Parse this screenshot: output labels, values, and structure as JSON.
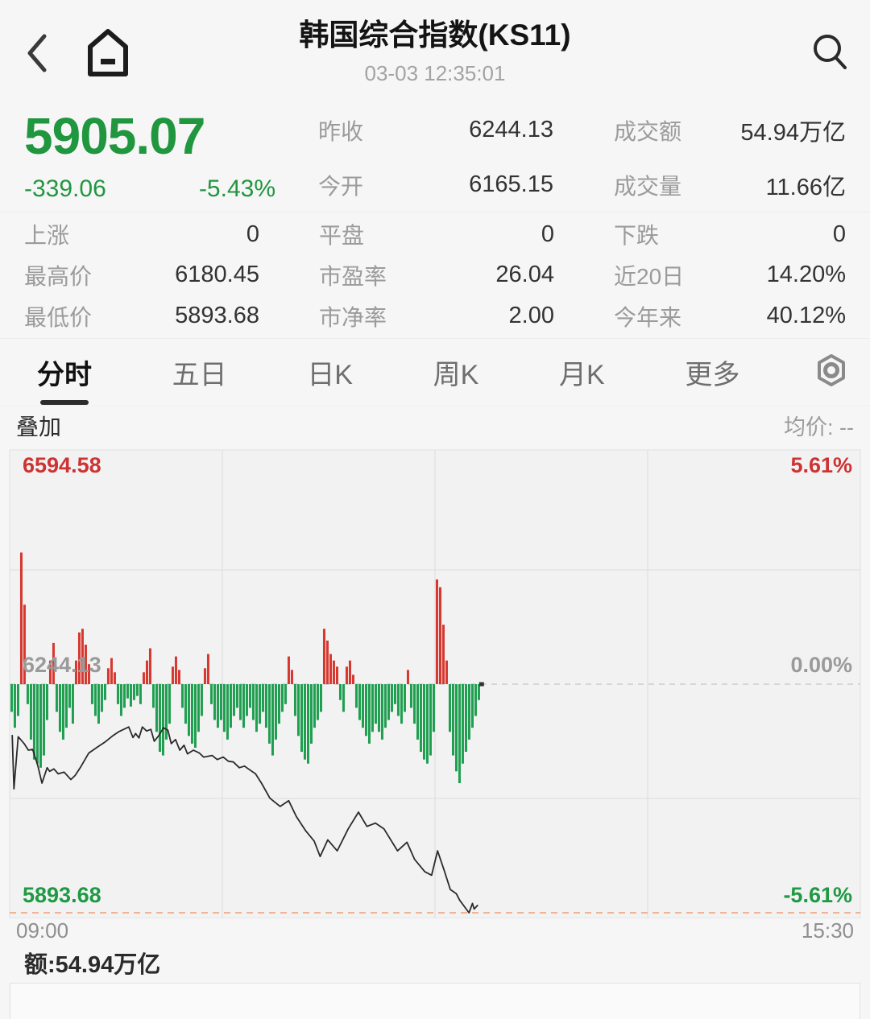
{
  "header": {
    "title": "韩国综合指数(KS11)",
    "time": "03-03 12:35:01"
  },
  "quote": {
    "price": "5905.07",
    "change": "-339.06",
    "change_pct": "-5.43%",
    "stats_top": [
      {
        "label": "昨收",
        "value": "6244.13"
      },
      {
        "label": "成交额",
        "value": "54.94万亿"
      },
      {
        "label": "今开",
        "value": "6165.15"
      },
      {
        "label": "成交量",
        "value": "11.66亿"
      }
    ],
    "stats": [
      {
        "label": "上涨",
        "value": "0"
      },
      {
        "label": "平盘",
        "value": "0"
      },
      {
        "label": "下跌",
        "value": "0"
      },
      {
        "label": "最高价",
        "value": "6180.45"
      },
      {
        "label": "市盈率",
        "value": "26.04"
      },
      {
        "label": "近20日",
        "value": "14.20%"
      },
      {
        "label": "最低价",
        "value": "5893.68"
      },
      {
        "label": "市净率",
        "value": "2.00"
      },
      {
        "label": "今年来",
        "value": "40.12%"
      }
    ]
  },
  "tabs": {
    "items": [
      "分时",
      "五日",
      "日K",
      "周K",
      "月K",
      "更多"
    ],
    "active": 0,
    "settings_icon": "indicator-settings-icon"
  },
  "overlay": {
    "label": "叠加",
    "avg_text": "均价: --"
  },
  "chart_labels": {
    "high": "6594.58",
    "high_pct": "5.61%",
    "mid": "6244.13",
    "mid_pct": "0.00%",
    "low": "5893.68",
    "low_pct": "-5.61%",
    "time_start": "09:00",
    "time_end": "15:30"
  },
  "footer": {
    "amount": "额:54.94万亿"
  },
  "colors": {
    "up_bar": "#d6372e",
    "down_bar": "#1f9e50",
    "text_red": "#cd3333",
    "text_green": "#1f9a44",
    "price_line": "#2b2b2b",
    "low_dash": "#ee9f76",
    "zero_dash": "#c6c6c6"
  },
  "chart_data": {
    "type": "line",
    "subtype": "intraday_price_line_with_signed_minute_bars",
    "title": "韩国综合指数(KS11) 分时",
    "x_axis": {
      "start": "09:00",
      "end": "15:30",
      "session_minutes": 390,
      "elapsed_fraction": 0.551,
      "gridlines": 4
    },
    "y_axis": {
      "unit": "pct_vs_prev_close",
      "max_pct": 5.61,
      "min_pct": -5.61,
      "max_value": 6594.58,
      "mid_value": 6244.13,
      "min_value": 5893.68,
      "h_gridlines_pct": [
        2.805,
        -2.805
      ]
    },
    "prev_close": 6244.13,
    "open": 6165.15,
    "high": 6180.45,
    "low": 5893.68,
    "last": 5905.07,
    "last_change_pct": -5.43,
    "price_line": [
      [
        0.003,
        -1.26
      ],
      [
        0.005,
        -2.57
      ],
      [
        0.01,
        -1.29
      ],
      [
        0.017,
        -1.46
      ],
      [
        0.022,
        -1.62
      ],
      [
        0.027,
        -1.6
      ],
      [
        0.033,
        -1.99
      ],
      [
        0.038,
        -2.43
      ],
      [
        0.044,
        -2.05
      ],
      [
        0.047,
        -2.14
      ],
      [
        0.052,
        -2.08
      ],
      [
        0.057,
        -2.2
      ],
      [
        0.064,
        -2.16
      ],
      [
        0.072,
        -2.34
      ],
      [
        0.077,
        -2.24
      ],
      [
        0.083,
        -2.05
      ],
      [
        0.093,
        -1.69
      ],
      [
        0.102,
        -1.56
      ],
      [
        0.112,
        -1.42
      ],
      [
        0.121,
        -1.27
      ],
      [
        0.128,
        -1.17
      ],
      [
        0.134,
        -1.11
      ],
      [
        0.14,
        -1.05
      ],
      [
        0.145,
        -1.31
      ],
      [
        0.148,
        -1.21
      ],
      [
        0.152,
        -1.32
      ],
      [
        0.156,
        -1.05
      ],
      [
        0.161,
        -1.15
      ],
      [
        0.166,
        -1.11
      ],
      [
        0.17,
        -1.4
      ],
      [
        0.175,
        -1.27
      ],
      [
        0.181,
        -1.07
      ],
      [
        0.186,
        -1.13
      ],
      [
        0.19,
        -1.46
      ],
      [
        0.195,
        -1.36
      ],
      [
        0.2,
        -1.62
      ],
      [
        0.205,
        -1.5
      ],
      [
        0.209,
        -1.71
      ],
      [
        0.216,
        -1.62
      ],
      [
        0.223,
        -1.69
      ],
      [
        0.228,
        -1.79
      ],
      [
        0.238,
        -1.75
      ],
      [
        0.244,
        -1.85
      ],
      [
        0.251,
        -1.79
      ],
      [
        0.257,
        -1.89
      ],
      [
        0.263,
        -1.91
      ],
      [
        0.27,
        -2.05
      ],
      [
        0.276,
        -2.01
      ],
      [
        0.282,
        -2.1
      ],
      [
        0.289,
        -2.2
      ],
      [
        0.296,
        -2.43
      ],
      [
        0.306,
        -2.8
      ],
      [
        0.318,
        -3.0
      ],
      [
        0.328,
        -2.86
      ],
      [
        0.337,
        -3.25
      ],
      [
        0.348,
        -3.6
      ],
      [
        0.358,
        -3.85
      ],
      [
        0.365,
        -4.23
      ],
      [
        0.374,
        -3.82
      ],
      [
        0.385,
        -4.09
      ],
      [
        0.398,
        -3.55
      ],
      [
        0.41,
        -3.14
      ],
      [
        0.42,
        -3.49
      ],
      [
        0.43,
        -3.41
      ],
      [
        0.44,
        -3.55
      ],
      [
        0.456,
        -4.09
      ],
      [
        0.467,
        -3.88
      ],
      [
        0.476,
        -4.3
      ],
      [
        0.488,
        -4.6
      ],
      [
        0.496,
        -4.69
      ],
      [
        0.503,
        -4.09
      ],
      [
        0.511,
        -4.58
      ],
      [
        0.518,
        -5.04
      ],
      [
        0.525,
        -5.14
      ],
      [
        0.529,
        -5.3
      ],
      [
        0.536,
        -5.5
      ],
      [
        0.54,
        -5.61
      ],
      [
        0.544,
        -5.38
      ],
      [
        0.546,
        -5.52
      ],
      [
        0.55,
        -5.43
      ]
    ],
    "bars": {
      "unit": "signed_pct_height",
      "start_f": 0.0009,
      "step_f": 0.003788,
      "values": [
        -0.68,
        -1.07,
        -0.78,
        3.23,
        1.95,
        -0.49,
        -1.36,
        -1.85,
        -1.95,
        -2.05,
        -1.75,
        -0.88,
        0.58,
        1.01,
        -0.68,
        -1.17,
        -1.36,
        -1.07,
        -0.58,
        -0.97,
        0.58,
        1.27,
        1.36,
        0.97,
        0.49,
        -0.49,
        -0.78,
        -0.97,
        -0.68,
        -0.39,
        0.39,
        0.64,
        0.29,
        -0.49,
        -0.78,
        -0.58,
        -0.35,
        -0.55,
        -0.39,
        -0.29,
        -0.49,
        0.29,
        0.58,
        0.88,
        -0.58,
        -1.17,
        -1.66,
        -1.75,
        -1.36,
        -0.97,
        0.43,
        0.68,
        0.35,
        -0.58,
        -0.97,
        -1.27,
        -1.46,
        -1.56,
        -1.17,
        -0.78,
        0.39,
        0.74,
        -0.49,
        -0.88,
        -1.07,
        -0.88,
        -1.17,
        -1.36,
        -1.07,
        -0.78,
        -0.58,
        -0.88,
        -1.07,
        -0.78,
        -0.58,
        -0.88,
        -1.17,
        -0.97,
        -0.68,
        -1.07,
        -1.46,
        -1.75,
        -1.36,
        -0.97,
        -0.68,
        -0.49,
        0.68,
        0.35,
        -0.78,
        -1.27,
        -1.66,
        -1.85,
        -1.95,
        -1.46,
        -1.07,
        -0.88,
        -0.68,
        1.36,
        1.07,
        0.74,
        0.58,
        0.43,
        -0.39,
        -0.68,
        0.43,
        0.58,
        0.23,
        -0.58,
        -0.88,
        -1.07,
        -1.27,
        -1.46,
        -1.17,
        -0.97,
        -1.17,
        -1.36,
        -1.07,
        -0.88,
        -0.68,
        -0.49,
        -0.78,
        -0.97,
        -0.68,
        0.35,
        -0.58,
        -0.97,
        -1.36,
        -1.66,
        -1.85,
        -1.95,
        -1.75,
        -1.17,
        2.57,
        2.38,
        1.46,
        0.58,
        -1.17,
        -1.75,
        -2.14,
        -2.43,
        -1.95,
        -1.66,
        -1.36,
        -1.07,
        -0.78,
        -0.39
      ]
    }
  }
}
